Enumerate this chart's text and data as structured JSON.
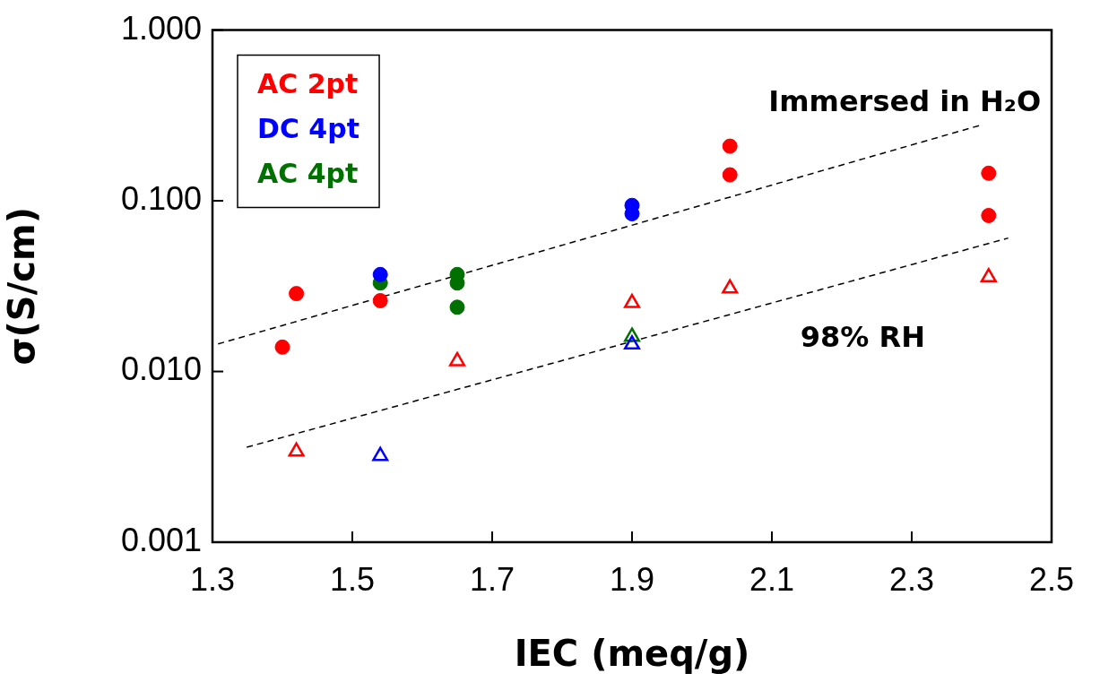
{
  "chart_data": {
    "type": "scatter",
    "xlabel": "IEC (meq/g)",
    "ylabel": "σ(S/cm)",
    "log": "y",
    "xlim": [
      1.3,
      2.5
    ],
    "ylim": [
      0.001,
      1
    ],
    "xticks": [
      1.3,
      1.5,
      1.7,
      1.9,
      2.1,
      2.3,
      2.5
    ],
    "yticks": [
      0.001,
      {
        "value": 0.01,
        "label": "0.010"
      },
      {
        "value": 0.1,
        "label": "0.100"
      },
      {
        "value": 1,
        "label": "1.000"
      }
    ],
    "legend": "top left",
    "marker": "circle",
    "annotations": [
      "Immersed in H₂O",
      "98% RH"
    ],
    "series": [
      {
        "name": "AC 2pt",
        "color": "#ff0000",
        "x": [
          1.4,
          1.42,
          1.54,
          2.04,
          2.04,
          2.41,
          2.41
        ],
        "values": [
          0.0139,
          0.0286,
          0.026,
          0.209,
          0.142,
          0.145,
          0.082
        ]
      },
      {
        "name": "DC 4pt",
        "color": "#0000ff",
        "x": [
          1.54,
          1.9,
          1.9
        ],
        "values": [
          0.037,
          0.094,
          0.084
        ]
      },
      {
        "name": "AC 4pt",
        "color": "#007000",
        "x": [
          1.54,
          1.65,
          1.65,
          1.65
        ],
        "values": [
          0.033,
          0.037,
          0.033,
          0.0238
        ]
      },
      {
        "color": "#ff0000",
        "marker": "triangle",
        "x": [
          1.42,
          1.65,
          1.9,
          2.04,
          2.41
        ],
        "values": [
          0.0034,
          0.0115,
          0.0252,
          0.0307,
          0.0357
        ]
      },
      {
        "color": "#0000ff",
        "marker": "triangle",
        "x": [
          1.54,
          1.9
        ],
        "values": [
          0.0032,
          0.0144
        ]
      },
      {
        "color": "#007000",
        "marker": "triangle",
        "x": [
          1.9
        ],
        "values": [
          0.016
        ]
      },
      {
        "type": "line",
        "color": "#000000",
        "marker": "none",
        "line_style": "dashed",
        "x": [
          1.308,
          2.398
        ],
        "values": [
          0.0145,
          0.277
        ]
      },
      {
        "type": "line",
        "color": "#000000",
        "marker": "none",
        "line_style": "dashed",
        "x": [
          1.349,
          2.438
        ],
        "values": [
          0.0036,
          0.0605
        ]
      }
    ]
  }
}
